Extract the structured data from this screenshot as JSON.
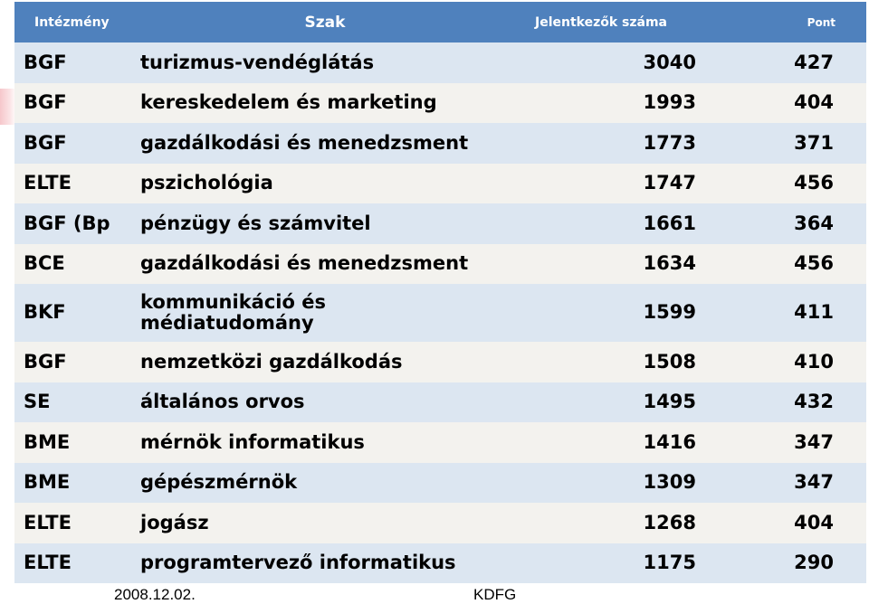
{
  "header": {
    "institution": "Intézmény",
    "major": "Szak",
    "applicants": "Jelentkezők száma",
    "points": "Pont"
  },
  "rows": [
    {
      "institution": "BGF",
      "major": "turizmus-vendéglátás",
      "applicants": "3040",
      "points": "427"
    },
    {
      "institution": "BGF",
      "major": "kereskedelem és marketing",
      "applicants": "1993",
      "points": "404"
    },
    {
      "institution": "BGF",
      "major": "gazdálkodási és menedzsment",
      "applicants": "1773",
      "points": "371"
    },
    {
      "institution": "ELTE",
      "major": "pszichológia",
      "applicants": "1747",
      "points": "456"
    },
    {
      "institution": "BGF (Bp",
      "major": "pénzügy és számvitel",
      "applicants": "1661",
      "points": "364"
    },
    {
      "institution": "BCE",
      "major": "gazdálkodási és menedzsment",
      "applicants": "1634",
      "points": "456"
    },
    {
      "institution": "BKF",
      "major": "kommunikáció és médiatudomány",
      "applicants": "1599",
      "points": "411"
    },
    {
      "institution": "BGF",
      "major": "nemzetközi gazdálkodás",
      "applicants": "1508",
      "points": "410"
    },
    {
      "institution": "SE",
      "major": "általános orvos",
      "applicants": "1495",
      "points": "432"
    },
    {
      "institution": "BME",
      "major": "mérnök informatikus",
      "applicants": "1416",
      "points": "347"
    },
    {
      "institution": "BME",
      "major": "gépészmérnök",
      "applicants": "1309",
      "points": "347"
    },
    {
      "institution": "ELTE",
      "major": "jogász",
      "applicants": "1268",
      "points": "404"
    },
    {
      "institution": "ELTE",
      "major": "programtervező informatikus",
      "applicants": "1175",
      "points": "290"
    }
  ],
  "footer": {
    "date": "2008.12.02.",
    "org": "KDFG"
  }
}
